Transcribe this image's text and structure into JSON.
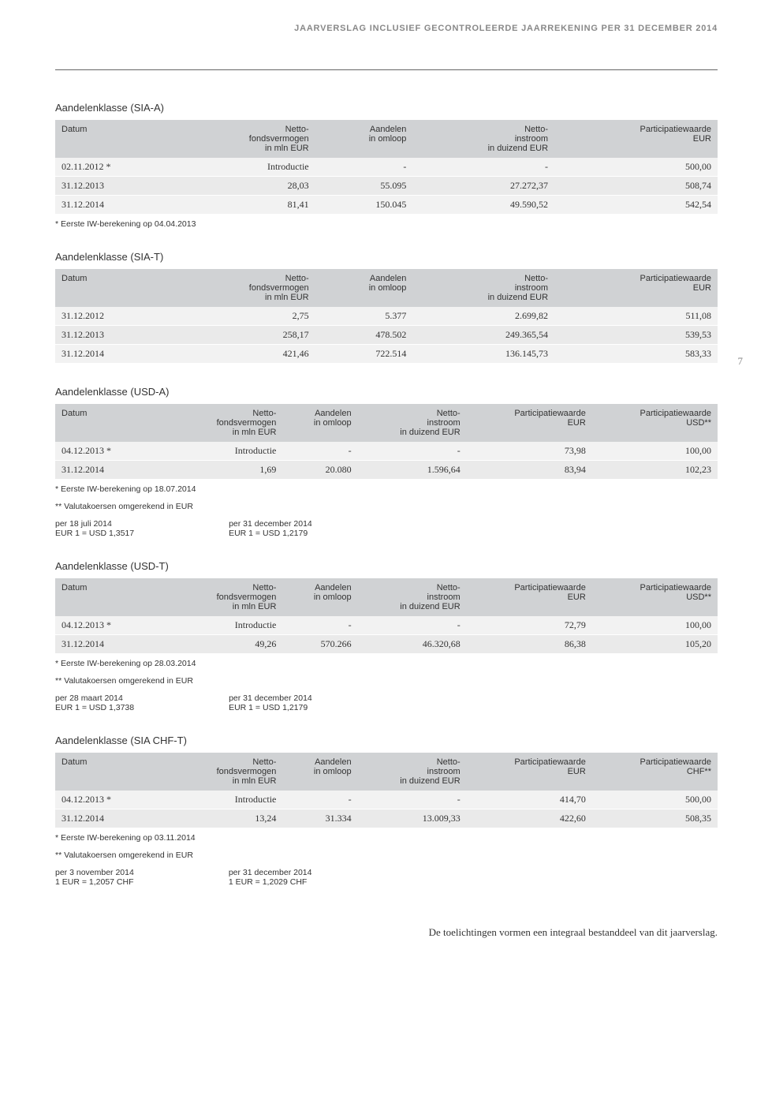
{
  "header": "JAARVERSLAG INCLUSIEF GECONTROLEERDE JAARREKENING PER 31 DECEMBER 2014",
  "page_number": "7",
  "footer": "De toelichtingen vormen een integraal bestanddeel van dit jaarverslag.",
  "cols": {
    "date": "Datum",
    "nav": "Netto-\nfondsvermogen\nin mln EUR",
    "shares": "Aandelen\nin omloop",
    "inflow": "Netto-\ninstroom\nin duizend EUR",
    "pw_eur": "Participatiewaarde\nEUR",
    "pw_usd": "Participatiewaarde\nUSD**",
    "pw_chf": "Participatiewaarde\nCHF**"
  },
  "fn_valuta": "** Valutakoersen omgerekend in EUR",
  "sia_a": {
    "title": "Aandelenklasse (SIA-A)",
    "rows": [
      {
        "d": "02.11.2012 *",
        "nav": "Introductie",
        "sh": "-",
        "inf": "-",
        "pw": "500,00"
      },
      {
        "d": "31.12.2013",
        "nav": "28,03",
        "sh": "55.095",
        "inf": "27.272,37",
        "pw": "508,74"
      },
      {
        "d": "31.12.2014",
        "nav": "81,41",
        "sh": "150.045",
        "inf": "49.590,52",
        "pw": "542,54"
      }
    ],
    "fn": "* Eerste IW-berekening op 04.04.2013"
  },
  "sia_t": {
    "title": "Aandelenklasse (SIA-T)",
    "rows": [
      {
        "d": "31.12.2012",
        "nav": "2,75",
        "sh": "5.377",
        "inf": "2.699,82",
        "pw": "511,08"
      },
      {
        "d": "31.12.2013",
        "nav": "258,17",
        "sh": "478.502",
        "inf": "249.365,54",
        "pw": "539,53"
      },
      {
        "d": "31.12.2014",
        "nav": "421,46",
        "sh": "722.514",
        "inf": "136.145,73",
        "pw": "583,33"
      }
    ]
  },
  "usd_a": {
    "title": "Aandelenklasse (USD-A)",
    "rows": [
      {
        "d": "04.12.2013 *",
        "nav": "Introductie",
        "sh": "-",
        "inf": "-",
        "e": "73,98",
        "u": "100,00"
      },
      {
        "d": "31.12.2014",
        "nav": "1,69",
        "sh": "20.080",
        "inf": "1.596,64",
        "e": "83,94",
        "u": "102,23"
      }
    ],
    "fn": "* Eerste IW-berekening op 18.07.2014",
    "rate1_l1": "per 18 juli 2014",
    "rate1_l2": "EUR 1 = USD 1,3517",
    "rate2_l1": "per 31 december 2014",
    "rate2_l2": "EUR 1 = USD 1,2179"
  },
  "usd_t": {
    "title": "Aandelenklasse (USD-T)",
    "rows": [
      {
        "d": "04.12.2013 *",
        "nav": "Introductie",
        "sh": "-",
        "inf": "-",
        "e": "72,79",
        "u": "100,00"
      },
      {
        "d": "31.12.2014",
        "nav": "49,26",
        "sh": "570.266",
        "inf": "46.320,68",
        "e": "86,38",
        "u": "105,20"
      }
    ],
    "fn": "* Eerste IW-berekening op 28.03.2014",
    "rate1_l1": "per 28 maart 2014",
    "rate1_l2": "EUR 1 = USD 1,3738",
    "rate2_l1": "per 31 december 2014",
    "rate2_l2": "EUR 1 = USD 1,2179"
  },
  "chf_t": {
    "title": "Aandelenklasse (SIA CHF-T)",
    "rows": [
      {
        "d": "04.12.2013 *",
        "nav": "Introductie",
        "sh": "-",
        "inf": "-",
        "e": "414,70",
        "c": "500,00"
      },
      {
        "d": "31.12.2014",
        "nav": "13,24",
        "sh": "31.334",
        "inf": "13.009,33",
        "e": "422,60",
        "c": "508,35"
      }
    ],
    "fn": "* Eerste IW-berekening op 03.11.2014",
    "rate1_l1": "per 3 november 2014",
    "rate1_l2": "1 EUR = 1,2057 CHF",
    "rate2_l1": "per 31 december 2014",
    "rate2_l2": "1 EUR = 1,2029 CHF"
  }
}
